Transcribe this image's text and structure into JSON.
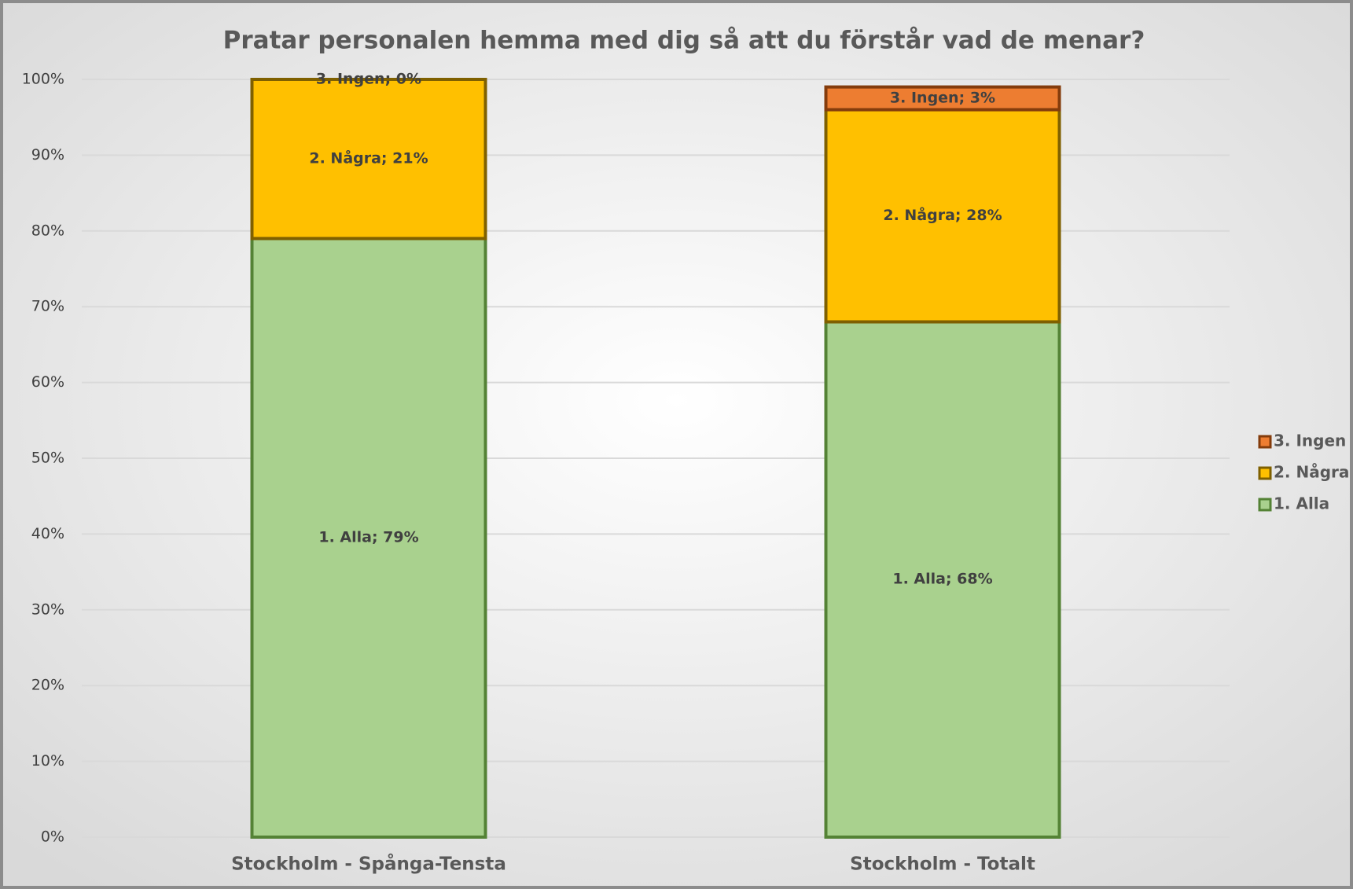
{
  "chart_data": {
    "type": "stacked_bar",
    "title": "Pratar personalen hemma med dig så att du förstår vad de menar?",
    "categories": [
      "Stockholm - Spånga-Tensta",
      "Stockholm - Totalt"
    ],
    "series": [
      {
        "name": "1. Alla",
        "color": "#a9d18e",
        "values": [
          79,
          68
        ],
        "value_labels": [
          "1. Alla; 79%",
          "1. Alla; 68%"
        ]
      },
      {
        "name": "2. Några",
        "color": "#ffc000",
        "values": [
          21,
          28
        ],
        "value_labels": [
          "2. Några; 21%",
          "2. Några; 28%"
        ]
      },
      {
        "name": "3. Ingen",
        "color": "#ed7d31",
        "values": [
          0,
          3
        ],
        "value_labels": [
          "3. Ingen; 0%",
          "3. Ingen; 3%"
        ]
      }
    ],
    "ylim": [
      0,
      100
    ],
    "yticks": [
      {
        "value": 0,
        "label": "0%"
      },
      {
        "value": 10,
        "label": "10%"
      },
      {
        "value": 20,
        "label": "20%"
      },
      {
        "value": 30,
        "label": "30%"
      },
      {
        "value": 40,
        "label": "40%"
      },
      {
        "value": 50,
        "label": "50%"
      },
      {
        "value": 60,
        "label": "60%"
      },
      {
        "value": 70,
        "label": "70%"
      },
      {
        "value": 80,
        "label": "80%"
      },
      {
        "value": 90,
        "label": "90%"
      },
      {
        "value": 100,
        "label": "100%"
      }
    ],
    "grid": true,
    "legend": "right"
  }
}
